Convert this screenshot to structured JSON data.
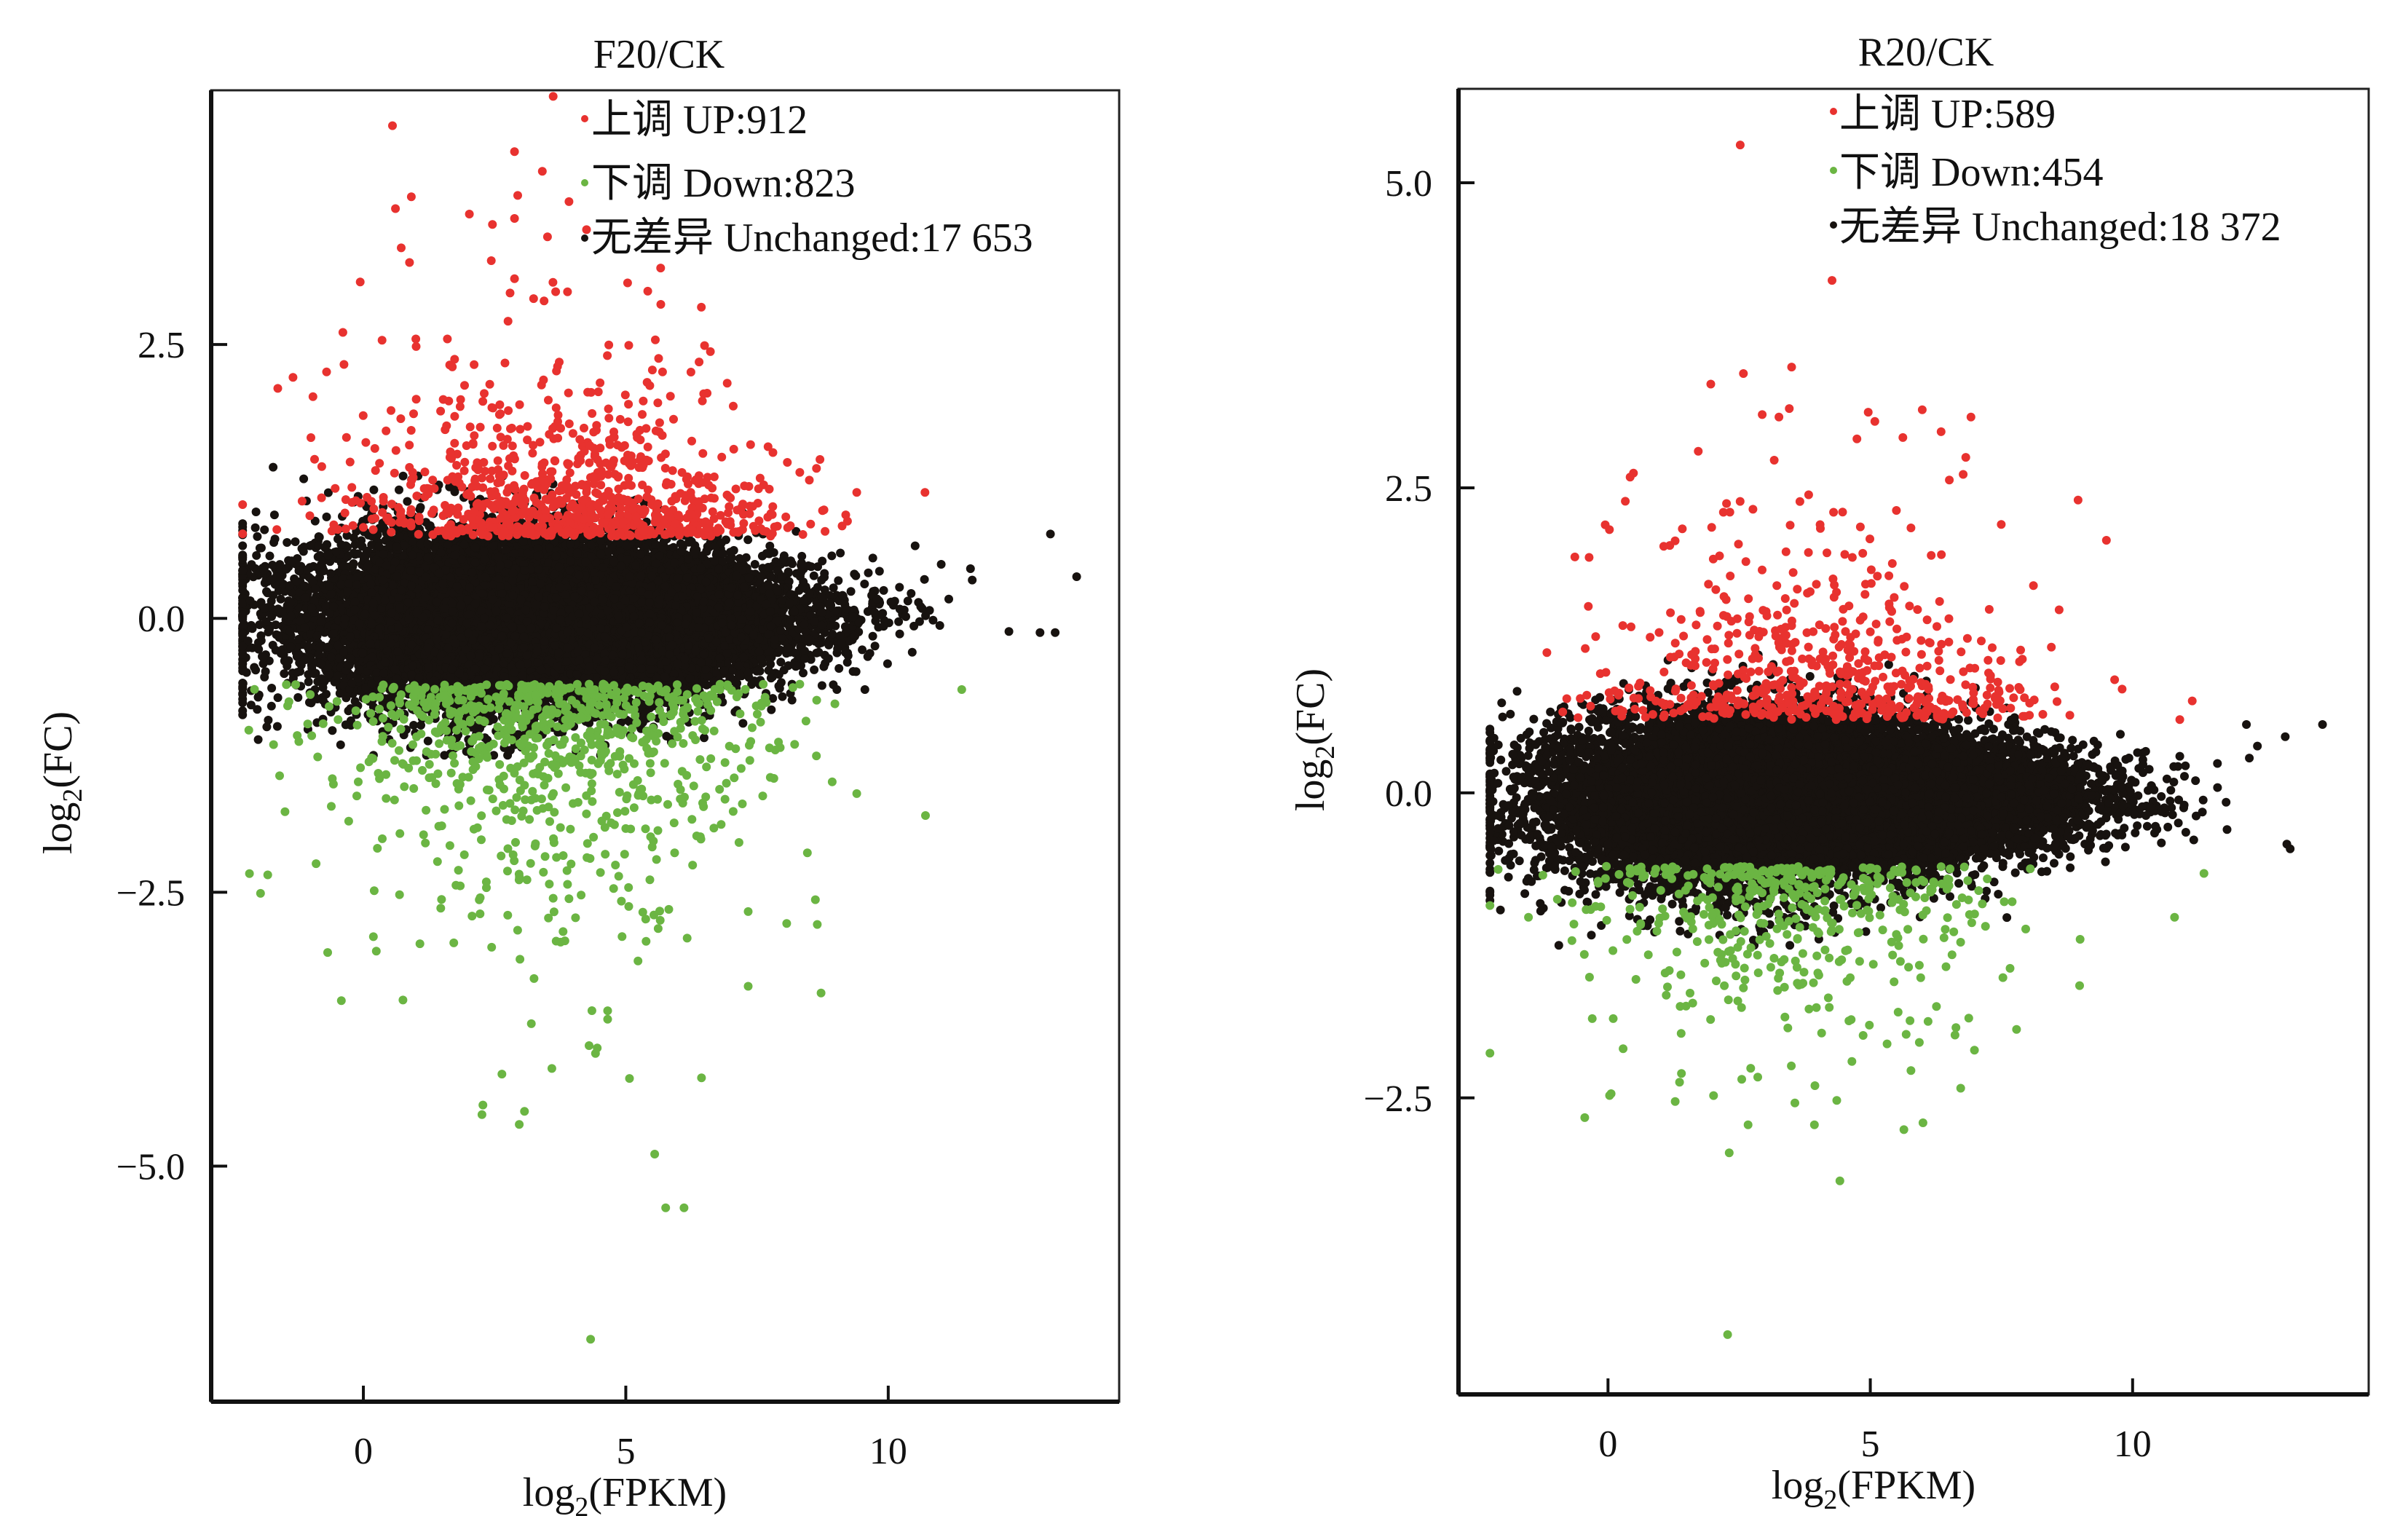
{
  "chart_data": [
    {
      "type": "scatter",
      "title": "F20/CK",
      "xlabel": "log2(FPKM)",
      "ylabel": "log2(FC)",
      "xlabel_parts": {
        "pre": "log",
        "sub": "2",
        "post": "(FPKM)"
      },
      "ylabel_parts": {
        "pre": "log",
        "sub": "2",
        "post": "(FC)"
      },
      "xlim": [
        -2.9,
        14.4
      ],
      "ylim": [
        -7.15,
        4.82
      ],
      "xticks": [
        0,
        5,
        10
      ],
      "xtick_labels": [
        "0",
        "5",
        "10"
      ],
      "yticks": [
        2.5,
        0.0,
        -2.5,
        -5.0
      ],
      "ytick_labels": [
        "2.5",
        "0.0",
        "−2.5",
        "−5.0"
      ],
      "grid": false,
      "legend_position": "top-right",
      "legend": [
        {
          "label": "上调 UP:912",
          "series": "up"
        },
        {
          "label": "下调 Down:823",
          "series": "down"
        },
        {
          "label": "无差异 Unchanged:17 653",
          "series": "unchanged"
        }
      ],
      "series": [
        {
          "name": "up",
          "count": 912,
          "color": "#e8322f",
          "distribution": {
            "x_mean": 3.8,
            "x_sd": 2.0,
            "y_min": 0.75,
            "y_scale": 0.45
          },
          "notable_points": [
            [
              2.88,
              4.26
            ],
            [
              3.41,
              4.08
            ],
            [
              2.94,
              3.86
            ],
            [
              2.88,
              3.65
            ],
            [
              2.02,
              3.69
            ],
            [
              -0.06,
              3.07
            ],
            [
              2.88,
              3.1
            ],
            [
              3.89,
              2.98
            ],
            [
              6.44,
              2.84
            ],
            [
              -0.39,
              2.61
            ],
            [
              -1.34,
              2.2
            ],
            [
              6.5,
              2.49
            ],
            [
              1.0,
              2.55
            ],
            [
              1.6,
              2.55
            ],
            [
              3.7,
              2.3
            ],
            [
              5.7,
              2.25
            ],
            [
              9.4,
              1.15
            ],
            [
              10.7,
              1.15
            ],
            [
              8.7,
              1.45
            ],
            [
              -1.0,
              1.65
            ]
          ]
        },
        {
          "name": "down",
          "count": 823,
          "color": "#6bb543",
          "distribution": {
            "x_mean": 3.5,
            "x_sd": 2.1,
            "y_max": -0.6,
            "y_scale": 0.7
          },
          "notable_points": [
            [
              -2.17,
              -2.33
            ],
            [
              -1.96,
              -2.51
            ],
            [
              4.33,
              -6.58
            ],
            [
              5.76,
              -5.38
            ],
            [
              6.11,
              -5.38
            ],
            [
              5.55,
              -4.89
            ],
            [
              2.26,
              -4.53
            ],
            [
              2.97,
              -4.62
            ],
            [
              2.64,
              -4.16
            ],
            [
              5.07,
              -4.2
            ],
            [
              8.72,
              -3.42
            ],
            [
              -0.42,
              -3.49
            ],
            [
              -0.68,
              -3.05
            ],
            [
              10.71,
              -1.8
            ],
            [
              8.46,
              -2.14
            ],
            [
              11.4,
              -0.65
            ],
            [
              9.4,
              -1.6
            ],
            [
              4.3,
              -3.9
            ],
            [
              3.2,
              -3.7
            ]
          ]
        },
        {
          "name": "unchanged",
          "count": 17653,
          "color": "#17120f",
          "distribution": {
            "x_mean": 3.6,
            "x_sd": 2.2,
            "y_mean": 0.0,
            "y_sd": 0.32
          },
          "notable_points": [
            [
              13.59,
              0.38
            ],
            [
              13.09,
              0.77
            ],
            [
              13.18,
              -0.13
            ],
            [
              -1.72,
              1.38
            ],
            [
              -1.84,
              -0.99
            ],
            [
              12.3,
              -0.12
            ],
            [
              11.6,
              0.35
            ],
            [
              -1.4,
              0.3
            ]
          ]
        }
      ]
    },
    {
      "type": "scatter",
      "title": "R20/CK",
      "xlabel": "log2(FPKM)",
      "ylabel": "log2(FC)",
      "xlabel_parts": {
        "pre": "log",
        "sub": "2",
        "post": "(FPKM)"
      },
      "ylabel_parts": {
        "pre": "log",
        "sub": "2",
        "post": "(FC)"
      },
      "xlim": [
        -2.85,
        14.5
      ],
      "ylim": [
        -4.93,
        5.77
      ],
      "xticks": [
        0,
        5,
        10
      ],
      "xtick_labels": [
        "0",
        "5",
        "10"
      ],
      "yticks": [
        5.0,
        2.5,
        0.0,
        -2.5
      ],
      "ytick_labels": [
        "5.0",
        "2.5",
        "0.0",
        "−2.5"
      ],
      "grid": false,
      "legend_position": "top-right",
      "legend": [
        {
          "label": "上调 UP:589",
          "series": "up"
        },
        {
          "label": "下调 Down:454",
          "series": "down"
        },
        {
          "label": "无差异 Unchanged:18 372",
          "series": "unchanged"
        }
      ],
      "series": [
        {
          "name": "up",
          "count": 589,
          "color": "#e8322f",
          "distribution": {
            "x_mean": 4.0,
            "x_sd": 2.0,
            "y_min": 0.6,
            "y_scale": 0.45
          },
          "notable_points": [
            [
              2.52,
              5.31
            ],
            [
              4.27,
              4.2
            ],
            [
              3.5,
              3.49
            ],
            [
              1.96,
              3.35
            ],
            [
              2.94,
              3.1
            ],
            [
              4.96,
              3.12
            ],
            [
              5.99,
              3.14
            ],
            [
              6.35,
              2.96
            ],
            [
              6.82,
              2.75
            ],
            [
              6.77,
              2.61
            ],
            [
              1.72,
              2.8
            ],
            [
              8.96,
              2.4
            ],
            [
              9.5,
              2.07
            ],
            [
              0.33,
              2.39
            ],
            [
              -0.36,
              1.93
            ],
            [
              4.3,
              2.3
            ],
            [
              2.2,
              2.3
            ],
            [
              8.6,
              1.5
            ],
            [
              9.8,
              0.85
            ],
            [
              10.9,
              0.6
            ]
          ]
        },
        {
          "name": "down",
          "count": 454,
          "color": "#6bb543",
          "distribution": {
            "x_mean": 3.5,
            "x_sd": 2.0,
            "y_max": -0.6,
            "y_scale": 0.45
          },
          "notable_points": [
            [
              2.28,
              -4.44
            ],
            [
              4.42,
              -3.18
            ],
            [
              2.31,
              -2.95
            ],
            [
              2.67,
              -2.72
            ],
            [
              5.64,
              -2.76
            ],
            [
              0.03,
              -2.48
            ],
            [
              1.28,
              -2.53
            ],
            [
              4.36,
              -2.52
            ],
            [
              8.99,
              -1.58
            ],
            [
              10.8,
              -1.02
            ],
            [
              11.36,
              -0.66
            ],
            [
              -0.3,
              -1.85
            ],
            [
              0.1,
              -1.85
            ],
            [
              1.4,
              -2.3
            ],
            [
              9.0,
              -1.2
            ]
          ]
        },
        {
          "name": "unchanged",
          "count": 18372,
          "color": "#17120f",
          "distribution": {
            "x_mean": 3.8,
            "x_sd": 2.3,
            "y_mean": -0.05,
            "y_sd": 0.28
          },
          "notable_points": [
            [
              13.62,
              0.56
            ],
            [
              12.91,
              0.46
            ],
            [
              12.94,
              -0.42
            ],
            [
              -2.05,
              -0.96
            ],
            [
              12.17,
              0.56
            ],
            [
              11.8,
              -0.3
            ],
            [
              11.2,
              0.1
            ],
            [
              10.9,
              0.3
            ],
            [
              -1.8,
              -0.5
            ],
            [
              -1.5,
              0.5
            ]
          ]
        }
      ]
    }
  ]
}
